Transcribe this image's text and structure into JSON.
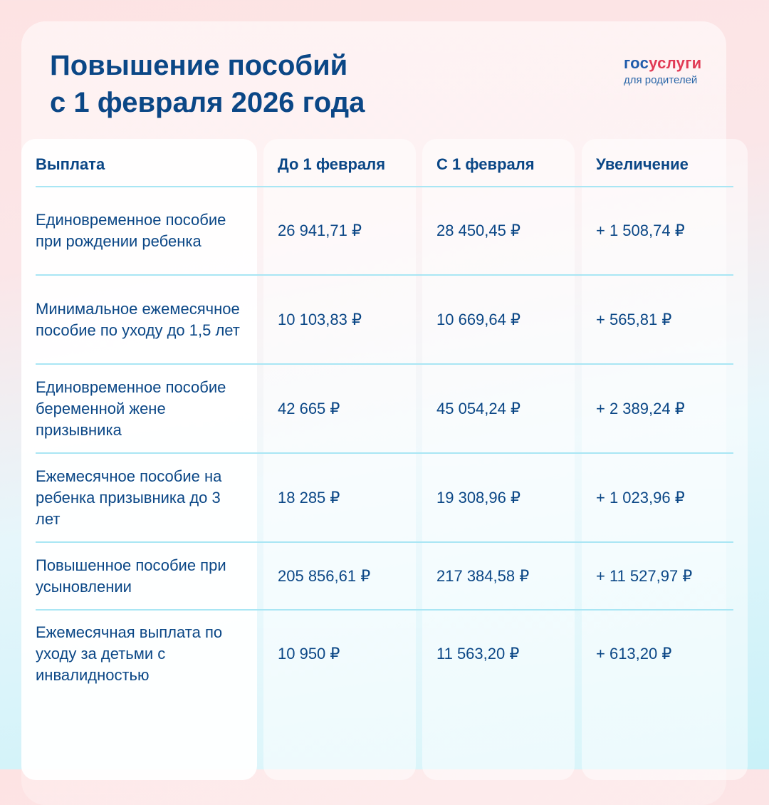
{
  "title": [
    "Повышение пособий",
    "с 1 февраля 2026 года"
  ],
  "logo": {
    "part1": "гос",
    "part2": "услуги",
    "subtitle": "для родителей"
  },
  "colors": {
    "text": "#0b4786",
    "accent_red": "#e13a55",
    "divider": "#a9e6f4"
  },
  "table": {
    "headers": [
      "Выплата",
      "До 1 февраля",
      "С 1 февраля",
      "Увеличение"
    ],
    "rows": [
      {
        "name": "Единовременное пособие при рождении ребенка",
        "before": "26 941,71 ₽",
        "after": "28 450,45 ₽",
        "increase": "+ 1 508,74 ₽"
      },
      {
        "name": "Минимальное ежемесячное пособие по уходу до 1,5 лет",
        "before": "10 103,83 ₽",
        "after": "10 669,64 ₽",
        "increase": "+ 565,81 ₽"
      },
      {
        "name": "Единовременное пособие беременной жене призывника",
        "before": "42 665 ₽",
        "after": "45 054,24 ₽",
        "increase": "+ 2 389,24 ₽"
      },
      {
        "name": "Ежемесячное пособие на ребенка призывника до 3 лет",
        "before": "18 285 ₽",
        "after": "19 308,96 ₽",
        "increase": "+ 1 023,96 ₽"
      },
      {
        "name": "Повышенное пособие при усыновлении",
        "before": "205 856,61 ₽",
        "after": "217 384,58 ₽",
        "increase": "+ 11 527,97 ₽"
      },
      {
        "name": "Ежемесячная выплата по уходу за детьми с инвалидностью",
        "before": "10 950 ₽",
        "after": "11 563,20 ₽",
        "increase": "+ 613,20 ₽"
      }
    ]
  }
}
